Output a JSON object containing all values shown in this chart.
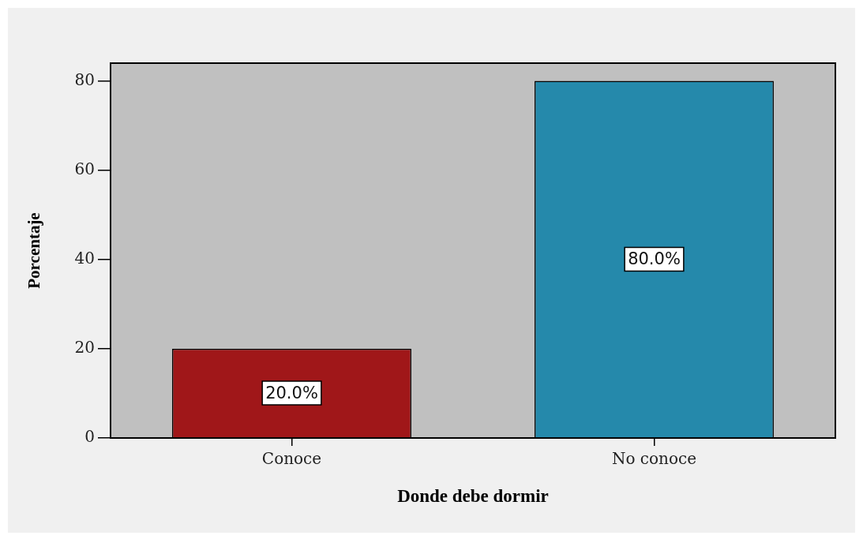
{
  "chart_data": {
    "type": "bar",
    "xlabel": "Donde debe dormir",
    "ylabel": "Porcentaje",
    "categories": [
      "Conoce",
      "No conoce"
    ],
    "values": [
      20,
      80
    ],
    "colors": [
      "#a01719",
      "#2589ab"
    ],
    "value_labels": [
      "20.0%",
      "80.0%"
    ],
    "ylim": [
      0,
      84
    ],
    "yticks": [
      0,
      20,
      40,
      60,
      80
    ]
  }
}
